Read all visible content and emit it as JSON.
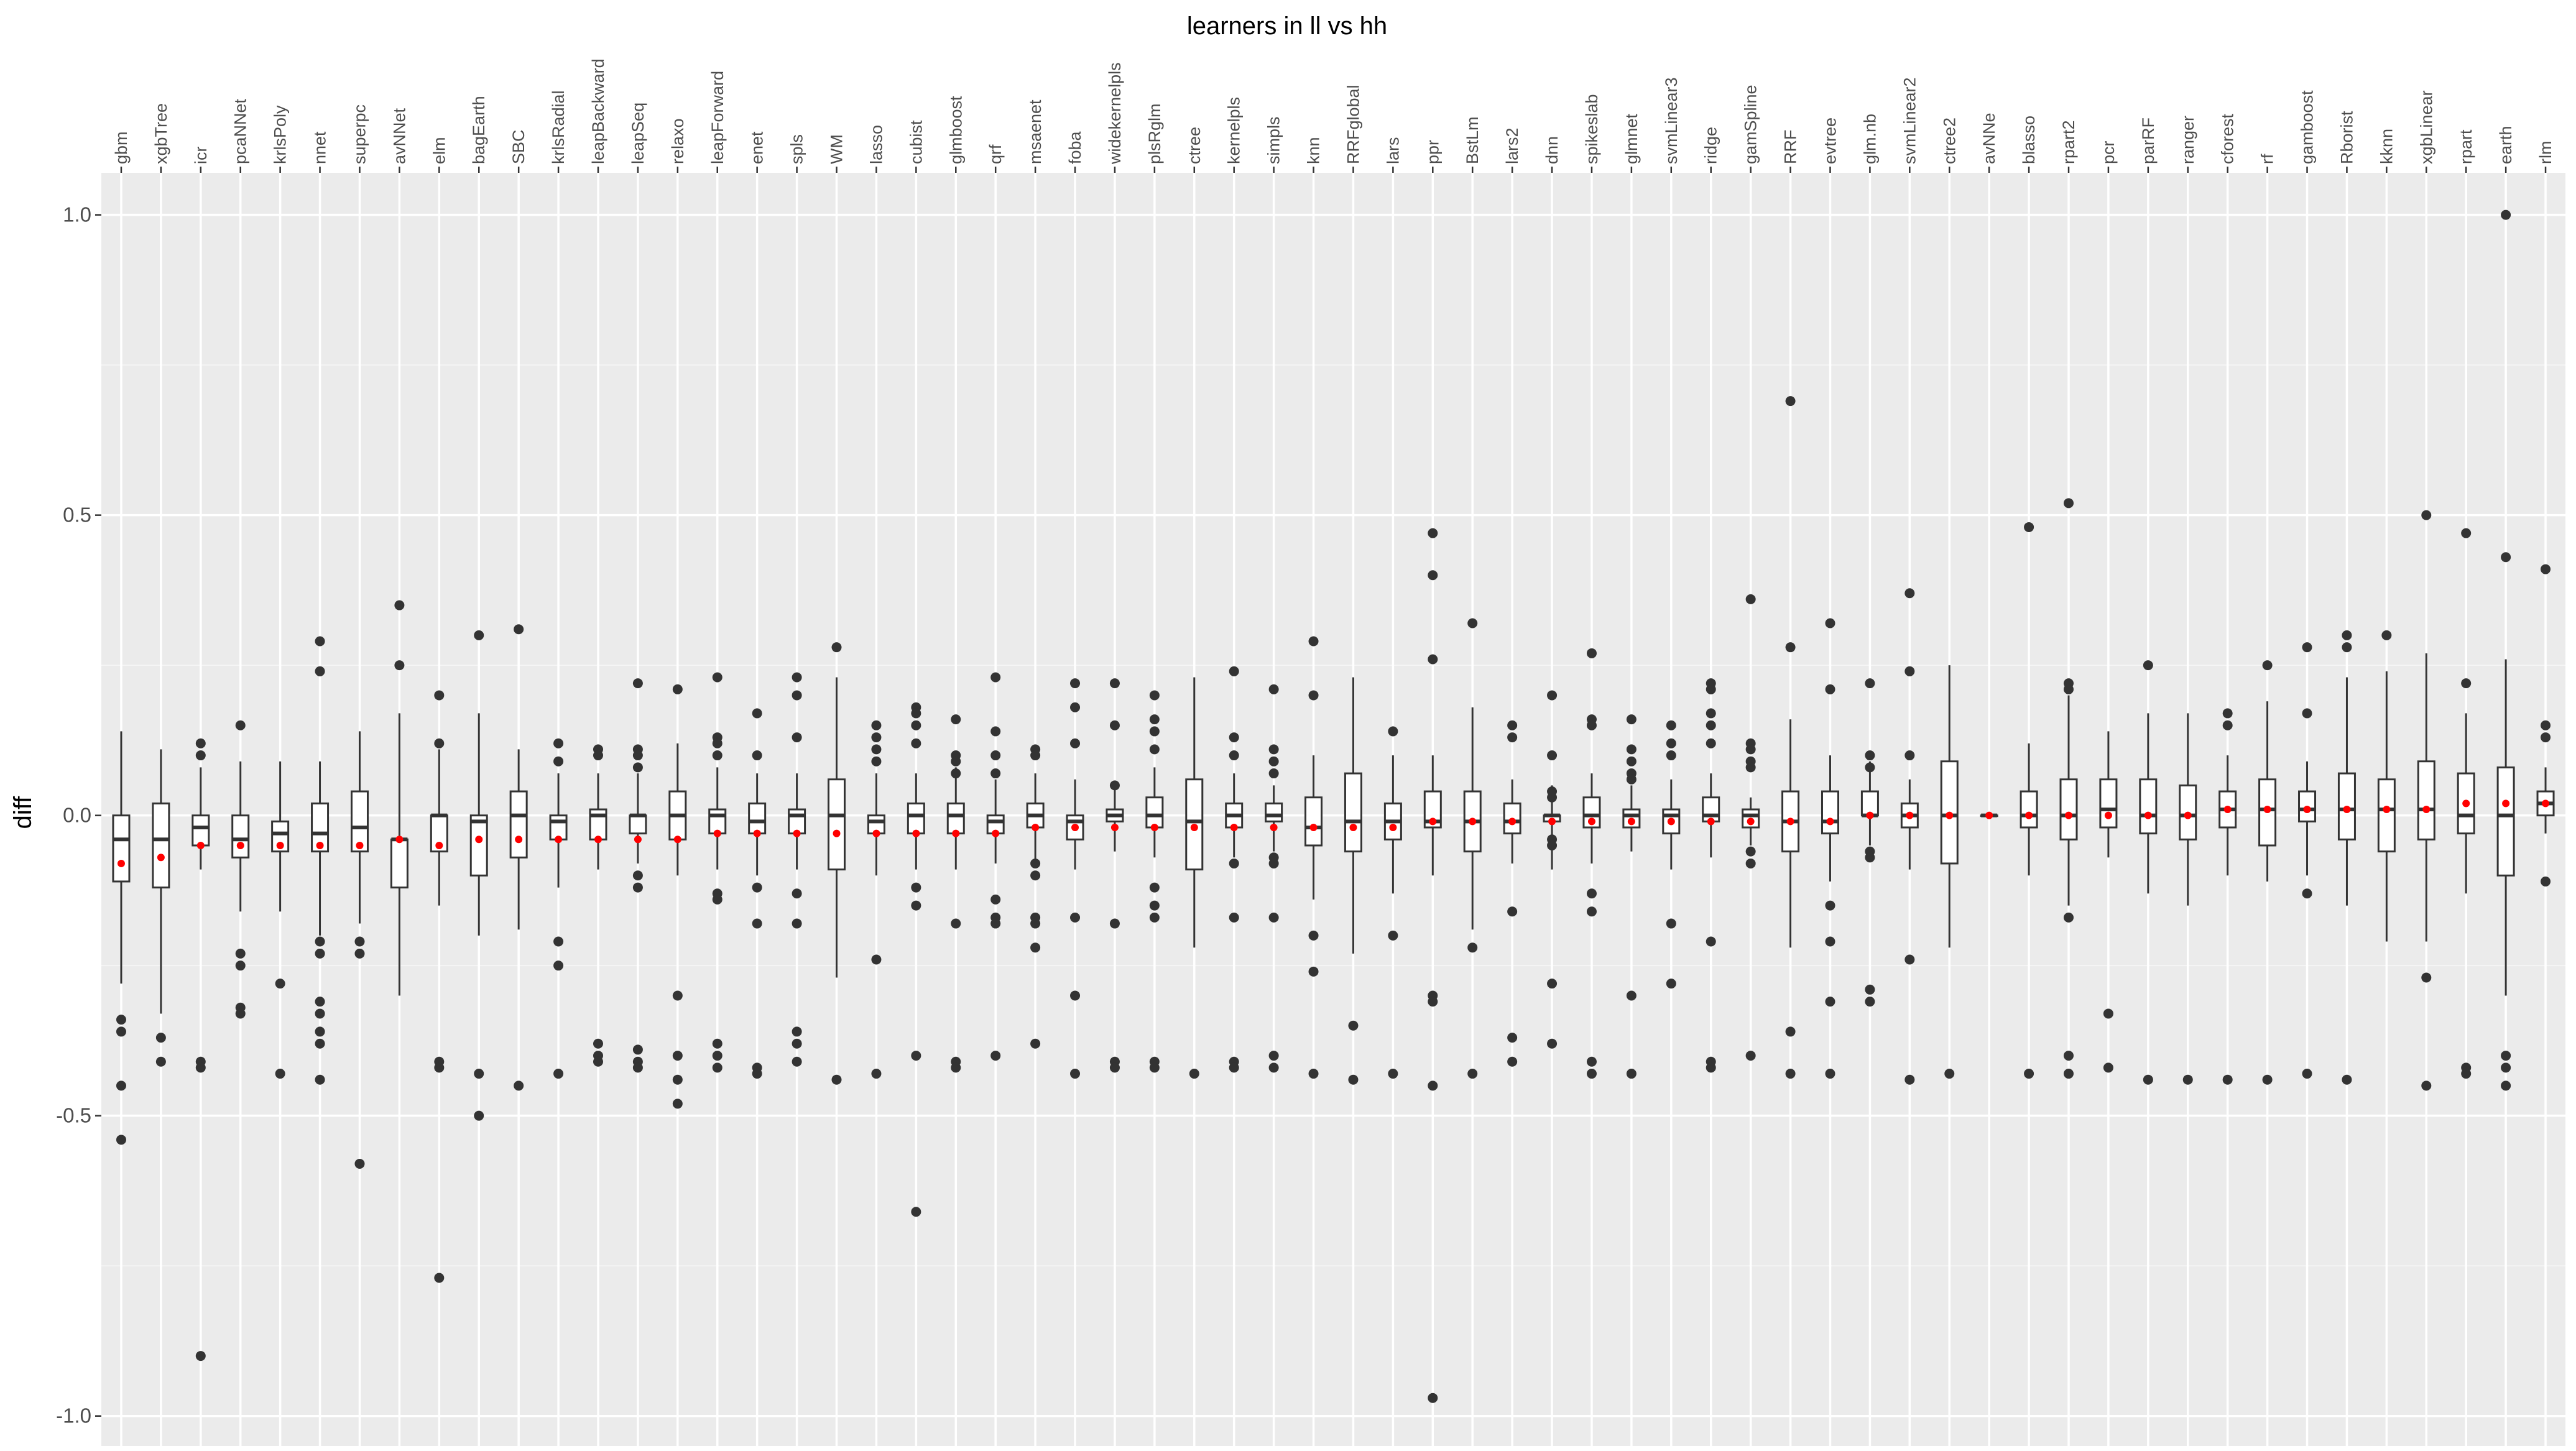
{
  "chart_data": {
    "type": "boxplot",
    "title": "learners in ll vs hh",
    "xlabel": "",
    "ylabel": "diff",
    "ylim": [
      -1.05,
      1.07
    ],
    "yticks": [
      -1.0,
      -0.5,
      0.0,
      0.5,
      1.0
    ],
    "ytick_labels": [
      "-1.0",
      "-0.5",
      "0.0",
      "0.5",
      "1.0"
    ],
    "x_axis_position": "top",
    "x_tick_rotation": -90,
    "grid": true,
    "legend": "none",
    "colors": {
      "panel": "#ebebeb",
      "grid": "#ffffff",
      "box_fill": "#ffffff",
      "box_line": "#333333",
      "outlier": "#333333",
      "mean": "#ff0000"
    },
    "categories": [
      "gbm",
      "xgbTree",
      "icr",
      "pcaNNet",
      "krlsPoly",
      "nnet",
      "superpc",
      "avNNet",
      "elm",
      "bagEarth",
      "SBC",
      "krlsRadial",
      "leapBackward",
      "leapSeq",
      "relaxo",
      "leapForward",
      "enet",
      "spls",
      "WM",
      "lasso",
      "cubist",
      "glmboost",
      "qrf",
      "msaenet",
      "foba",
      "widekernelpls",
      "plsRglm",
      "ctree",
      "kernelpls",
      "simpls",
      "knn",
      "RRFglobal",
      "lars",
      "ppr",
      "BstLm",
      "lars2",
      "dnn",
      "spikeslab",
      "glmnet",
      "svmLinear3",
      "ridge",
      "gamSpline",
      "RRF",
      "evtree",
      "glm.nb",
      "svmLinear2",
      "ctree2",
      "avNNe",
      "blasso",
      "rpart2",
      "pcr",
      "parRF",
      "ranger",
      "cforest",
      "rf",
      "gamboost",
      "Rborist",
      "kknn",
      "xgbLinear",
      "rpart",
      "earth",
      "rlm"
    ],
    "boxes": [
      {
        "lo": -0.28,
        "q1": -0.11,
        "med": -0.04,
        "q3": 0.0,
        "hi": 0.14,
        "mean": -0.08,
        "outliers": [
          -0.34,
          -0.36,
          -0.45,
          -0.54
        ]
      },
      {
        "lo": -0.33,
        "q1": -0.12,
        "med": -0.04,
        "q3": 0.02,
        "hi": 0.11,
        "mean": -0.07,
        "outliers": [
          -0.37,
          -0.41
        ]
      },
      {
        "lo": -0.09,
        "q1": -0.05,
        "med": -0.02,
        "q3": 0.0,
        "hi": 0.08,
        "mean": -0.05,
        "outliers": [
          0.1,
          0.12,
          -0.41,
          -0.42,
          -0.9
        ]
      },
      {
        "lo": -0.16,
        "q1": -0.07,
        "med": -0.04,
        "q3": 0.0,
        "hi": 0.09,
        "mean": -0.05,
        "outliers": [
          0.15,
          -0.23,
          -0.25,
          -0.32,
          -0.33
        ]
      },
      {
        "lo": -0.16,
        "q1": -0.06,
        "med": -0.03,
        "q3": -0.01,
        "hi": 0.09,
        "mean": -0.05,
        "outliers": [
          -0.28,
          -0.43
        ]
      },
      {
        "lo": -0.2,
        "q1": -0.06,
        "med": -0.03,
        "q3": 0.02,
        "hi": 0.09,
        "mean": -0.05,
        "outliers": [
          0.29,
          0.24,
          -0.21,
          -0.23,
          -0.31,
          -0.33,
          -0.36,
          -0.38,
          -0.44
        ]
      },
      {
        "lo": -0.18,
        "q1": -0.06,
        "med": -0.02,
        "q3": 0.04,
        "hi": 0.14,
        "mean": -0.05,
        "outliers": [
          -0.21,
          -0.23,
          -0.58
        ]
      },
      {
        "lo": -0.3,
        "q1": -0.12,
        "med": -0.04,
        "q3": -0.04,
        "hi": 0.17,
        "mean": -0.04,
        "outliers": [
          0.35,
          0.25
        ]
      },
      {
        "lo": -0.15,
        "q1": -0.06,
        "med": 0.0,
        "q3": 0.0,
        "hi": 0.11,
        "mean": -0.05,
        "outliers": [
          0.2,
          0.12,
          -0.41,
          -0.42,
          -0.77
        ]
      },
      {
        "lo": -0.2,
        "q1": -0.1,
        "med": -0.01,
        "q3": 0.0,
        "hi": 0.17,
        "mean": -0.04,
        "outliers": [
          0.3,
          -0.43,
          -0.5
        ]
      },
      {
        "lo": -0.19,
        "q1": -0.07,
        "med": 0.0,
        "q3": 0.04,
        "hi": 0.11,
        "mean": -0.04,
        "outliers": [
          0.31,
          -0.45
        ]
      },
      {
        "lo": -0.12,
        "q1": -0.04,
        "med": -0.01,
        "q3": 0.0,
        "hi": 0.07,
        "mean": -0.04,
        "outliers": [
          0.12,
          0.09,
          -0.21,
          -0.25,
          -0.43
        ]
      },
      {
        "lo": -0.09,
        "q1": -0.04,
        "med": 0.0,
        "q3": 0.01,
        "hi": 0.07,
        "mean": -0.04,
        "outliers": [
          0.11,
          0.1,
          -0.38,
          -0.4,
          -0.41
        ]
      },
      {
        "lo": -0.08,
        "q1": -0.03,
        "med": 0.0,
        "q3": 0.0,
        "hi": 0.07,
        "mean": -0.04,
        "outliers": [
          0.22,
          0.11,
          0.1,
          0.08,
          -0.1,
          -0.12,
          -0.39,
          -0.41,
          -0.42
        ]
      },
      {
        "lo": -0.1,
        "q1": -0.04,
        "med": 0.0,
        "q3": 0.04,
        "hi": 0.12,
        "mean": -0.04,
        "outliers": [
          0.21,
          -0.3,
          -0.4,
          -0.44,
          -0.48
        ]
      },
      {
        "lo": -0.09,
        "q1": -0.03,
        "med": 0.0,
        "q3": 0.01,
        "hi": 0.08,
        "mean": -0.03,
        "outliers": [
          0.23,
          0.13,
          0.12,
          0.1,
          -0.13,
          -0.14,
          -0.38,
          -0.4,
          -0.42
        ]
      },
      {
        "lo": -0.1,
        "q1": -0.03,
        "med": -0.01,
        "q3": 0.02,
        "hi": 0.07,
        "mean": -0.03,
        "outliers": [
          0.17,
          0.1,
          -0.12,
          -0.18,
          -0.42,
          -0.43
        ]
      },
      {
        "lo": -0.09,
        "q1": -0.03,
        "med": 0.0,
        "q3": 0.01,
        "hi": 0.07,
        "mean": -0.03,
        "outliers": [
          0.23,
          0.2,
          0.13,
          -0.13,
          -0.18,
          -0.36,
          -0.38,
          -0.41
        ]
      },
      {
        "lo": -0.27,
        "q1": -0.09,
        "med": 0.0,
        "q3": 0.06,
        "hi": 0.23,
        "mean": -0.03,
        "outliers": [
          0.28,
          -0.44
        ]
      },
      {
        "lo": -0.1,
        "q1": -0.03,
        "med": -0.01,
        "q3": 0.0,
        "hi": 0.07,
        "mean": -0.03,
        "outliers": [
          0.15,
          0.13,
          0.11,
          0.09,
          -0.24,
          -0.43
        ]
      },
      {
        "lo": -0.09,
        "q1": -0.03,
        "med": 0.0,
        "q3": 0.02,
        "hi": 0.07,
        "mean": -0.03,
        "outliers": [
          0.18,
          0.17,
          0.15,
          0.12,
          -0.12,
          -0.15,
          -0.4,
          -0.66
        ]
      },
      {
        "lo": -0.09,
        "q1": -0.03,
        "med": 0.0,
        "q3": 0.02,
        "hi": 0.08,
        "mean": -0.03,
        "outliers": [
          0.16,
          0.1,
          0.09,
          0.07,
          -0.18,
          -0.41,
          -0.42
        ]
      },
      {
        "lo": -0.08,
        "q1": -0.03,
        "med": -0.01,
        "q3": 0.0,
        "hi": 0.06,
        "mean": -0.03,
        "outliers": [
          0.23,
          0.14,
          0.1,
          0.07,
          -0.14,
          -0.17,
          -0.18,
          -0.4
        ]
      },
      {
        "lo": -0.08,
        "q1": -0.02,
        "med": 0.0,
        "q3": 0.02,
        "hi": 0.07,
        "mean": -0.02,
        "outliers": [
          0.11,
          0.1,
          -0.08,
          -0.1,
          -0.17,
          -0.18,
          -0.22,
          -0.38
        ]
      },
      {
        "lo": -0.09,
        "q1": -0.04,
        "med": -0.01,
        "q3": 0.0,
        "hi": 0.06,
        "mean": -0.02,
        "outliers": [
          0.22,
          0.18,
          0.12,
          -0.17,
          -0.3,
          -0.43
        ]
      },
      {
        "lo": -0.06,
        "q1": -0.01,
        "med": 0.0,
        "q3": 0.01,
        "hi": 0.05,
        "mean": -0.02,
        "outliers": [
          0.22,
          0.15,
          0.05,
          -0.18,
          -0.41,
          -0.42
        ]
      },
      {
        "lo": -0.07,
        "q1": -0.02,
        "med": 0.0,
        "q3": 0.03,
        "hi": 0.08,
        "mean": -0.02,
        "outliers": [
          0.2,
          0.16,
          0.14,
          0.11,
          -0.12,
          -0.15,
          -0.17,
          -0.41,
          -0.42
        ]
      },
      {
        "lo": -0.22,
        "q1": -0.09,
        "med": -0.01,
        "q3": 0.06,
        "hi": 0.23,
        "mean": -0.02,
        "outliers": [
          -0.43
        ]
      },
      {
        "lo": -0.07,
        "q1": -0.02,
        "med": 0.0,
        "q3": 0.02,
        "hi": 0.07,
        "mean": -0.02,
        "outliers": [
          0.24,
          0.13,
          0.1,
          -0.08,
          -0.17,
          -0.41,
          -0.42
        ]
      },
      {
        "lo": -0.06,
        "q1": -0.01,
        "med": 0.0,
        "q3": 0.02,
        "hi": 0.05,
        "mean": -0.02,
        "outliers": [
          0.21,
          0.11,
          0.09,
          0.07,
          -0.07,
          -0.08,
          -0.17,
          -0.4,
          -0.42
        ]
      },
      {
        "lo": -0.14,
        "q1": -0.05,
        "med": -0.02,
        "q3": 0.03,
        "hi": 0.1,
        "mean": -0.02,
        "outliers": [
          0.29,
          0.2,
          -0.2,
          -0.26,
          -0.43
        ]
      },
      {
        "lo": -0.23,
        "q1": -0.06,
        "med": -0.01,
        "q3": 0.07,
        "hi": 0.23,
        "mean": -0.02,
        "outliers": [
          -0.35,
          -0.44
        ]
      },
      {
        "lo": -0.13,
        "q1": -0.04,
        "med": -0.01,
        "q3": 0.02,
        "hi": 0.1,
        "mean": -0.02,
        "outliers": [
          0.14,
          -0.2,
          -0.43
        ]
      },
      {
        "lo": -0.1,
        "q1": -0.02,
        "med": -0.01,
        "q3": 0.04,
        "hi": 0.1,
        "mean": -0.01,
        "outliers": [
          0.47,
          0.4,
          0.26,
          -0.3,
          -0.31,
          -0.45,
          -0.97
        ]
      },
      {
        "lo": -0.19,
        "q1": -0.06,
        "med": -0.01,
        "q3": 0.04,
        "hi": 0.18,
        "mean": -0.01,
        "outliers": [
          0.32,
          -0.22,
          -0.43
        ]
      },
      {
        "lo": -0.08,
        "q1": -0.03,
        "med": -0.01,
        "q3": 0.02,
        "hi": 0.06,
        "mean": -0.01,
        "outliers": [
          0.15,
          0.13,
          -0.16,
          -0.37,
          -0.41
        ]
      },
      {
        "lo": -0.09,
        "q1": -0.01,
        "med": 0.0,
        "q3": 0.0,
        "hi": 0.05,
        "mean": -0.01,
        "outliers": [
          0.2,
          0.1,
          0.04,
          0.03,
          -0.04,
          -0.05,
          -0.28,
          -0.38
        ]
      },
      {
        "lo": -0.08,
        "q1": -0.02,
        "med": 0.0,
        "q3": 0.03,
        "hi": 0.07,
        "mean": -0.01,
        "outliers": [
          0.27,
          0.16,
          0.15,
          -0.13,
          -0.16,
          -0.41,
          -0.43
        ]
      },
      {
        "lo": -0.06,
        "q1": -0.02,
        "med": 0.0,
        "q3": 0.01,
        "hi": 0.05,
        "mean": -0.01,
        "outliers": [
          0.16,
          0.11,
          0.09,
          0.07,
          0.06,
          -0.3,
          -0.43
        ]
      },
      {
        "lo": -0.09,
        "q1": -0.03,
        "med": 0.0,
        "q3": 0.01,
        "hi": 0.06,
        "mean": -0.01,
        "outliers": [
          0.15,
          0.12,
          0.1,
          -0.18,
          -0.28
        ]
      },
      {
        "lo": -0.07,
        "q1": -0.01,
        "med": 0.0,
        "q3": 0.03,
        "hi": 0.07,
        "mean": -0.01,
        "outliers": [
          0.22,
          0.21,
          0.17,
          0.15,
          0.12,
          -0.21,
          -0.41,
          -0.42
        ]
      },
      {
        "lo": -0.05,
        "q1": -0.02,
        "med": 0.0,
        "q3": 0.01,
        "hi": 0.03,
        "mean": -0.01,
        "outliers": [
          0.36,
          0.12,
          0.11,
          0.09,
          0.08,
          -0.06,
          -0.08,
          -0.4
        ]
      },
      {
        "lo": -0.22,
        "q1": -0.06,
        "med": -0.01,
        "q3": 0.04,
        "hi": 0.16,
        "mean": -0.01,
        "outliers": [
          0.69,
          0.28,
          -0.36,
          -0.43
        ]
      },
      {
        "lo": -0.11,
        "q1": -0.03,
        "med": -0.01,
        "q3": 0.04,
        "hi": 0.1,
        "mean": -0.01,
        "outliers": [
          0.32,
          0.21,
          -0.15,
          -0.21,
          -0.31,
          -0.43
        ]
      },
      {
        "lo": -0.05,
        "q1": 0.0,
        "med": 0.0,
        "q3": 0.04,
        "hi": 0.09,
        "mean": 0.0,
        "outliers": [
          0.22,
          0.1,
          0.08,
          -0.06,
          -0.07,
          -0.29,
          -0.31
        ]
      },
      {
        "lo": -0.09,
        "q1": -0.02,
        "med": 0.0,
        "q3": 0.02,
        "hi": 0.06,
        "mean": 0.0,
        "outliers": [
          0.37,
          0.24,
          0.1,
          -0.24,
          -0.44
        ]
      },
      {
        "lo": -0.22,
        "q1": -0.08,
        "med": 0.0,
        "q3": 0.09,
        "hi": 0.25,
        "mean": 0.0,
        "outliers": [
          -0.43
        ]
      },
      {
        "lo": 0.0,
        "q1": 0.0,
        "med": 0.0,
        "q3": 0.0,
        "hi": 0.0,
        "mean": 0.0,
        "outliers": []
      },
      {
        "lo": -0.1,
        "q1": -0.02,
        "med": 0.0,
        "q3": 0.04,
        "hi": 0.12,
        "mean": 0.0,
        "outliers": [
          0.48,
          -0.43
        ]
      },
      {
        "lo": -0.15,
        "q1": -0.04,
        "med": 0.0,
        "q3": 0.06,
        "hi": 0.2,
        "mean": 0.0,
        "outliers": [
          0.52,
          0.22,
          0.21,
          -0.17,
          -0.4,
          -0.43
        ]
      },
      {
        "lo": -0.07,
        "q1": -0.02,
        "med": 0.01,
        "q3": 0.06,
        "hi": 0.14,
        "mean": 0.0,
        "outliers": [
          -0.33,
          -0.42
        ]
      },
      {
        "lo": -0.13,
        "q1": -0.03,
        "med": 0.0,
        "q3": 0.06,
        "hi": 0.17,
        "mean": 0.0,
        "outliers": [
          0.25,
          -0.44
        ]
      },
      {
        "lo": -0.15,
        "q1": -0.04,
        "med": 0.0,
        "q3": 0.05,
        "hi": 0.17,
        "mean": 0.0,
        "outliers": [
          -0.44
        ]
      },
      {
        "lo": -0.1,
        "q1": -0.02,
        "med": 0.01,
        "q3": 0.04,
        "hi": 0.1,
        "mean": 0.01,
        "outliers": [
          0.17,
          0.15,
          -0.44
        ]
      },
      {
        "lo": -0.11,
        "q1": -0.05,
        "med": 0.01,
        "q3": 0.06,
        "hi": 0.19,
        "mean": 0.01,
        "outliers": [
          0.25,
          -0.44
        ]
      },
      {
        "lo": -0.1,
        "q1": -0.01,
        "med": 0.01,
        "q3": 0.04,
        "hi": 0.09,
        "mean": 0.01,
        "outliers": [
          0.28,
          0.17,
          -0.13,
          -0.43
        ]
      },
      {
        "lo": -0.15,
        "q1": -0.04,
        "med": 0.01,
        "q3": 0.07,
        "hi": 0.23,
        "mean": 0.01,
        "outliers": [
          0.3,
          0.28,
          -0.44
        ]
      },
      {
        "lo": -0.21,
        "q1": -0.06,
        "med": 0.01,
        "q3": 0.06,
        "hi": 0.24,
        "mean": 0.01,
        "outliers": [
          0.3
        ]
      },
      {
        "lo": -0.21,
        "q1": -0.04,
        "med": 0.01,
        "q3": 0.09,
        "hi": 0.27,
        "mean": 0.01,
        "outliers": [
          0.5,
          -0.27,
          -0.45
        ]
      },
      {
        "lo": -0.13,
        "q1": -0.03,
        "med": 0.0,
        "q3": 0.07,
        "hi": 0.17,
        "mean": 0.02,
        "outliers": [
          0.47,
          0.22,
          -0.42,
          -0.43
        ]
      },
      {
        "lo": -0.3,
        "q1": -0.1,
        "med": 0.0,
        "q3": 0.08,
        "hi": 0.26,
        "mean": 0.02,
        "outliers": [
          1.0,
          0.43,
          -0.4,
          -0.42,
          -0.45
        ]
      },
      {
        "lo": -0.03,
        "q1": 0.0,
        "med": 0.02,
        "q3": 0.04,
        "hi": 0.08,
        "mean": 0.02,
        "outliers": [
          0.41,
          0.15,
          0.13,
          -0.11
        ]
      }
    ]
  }
}
